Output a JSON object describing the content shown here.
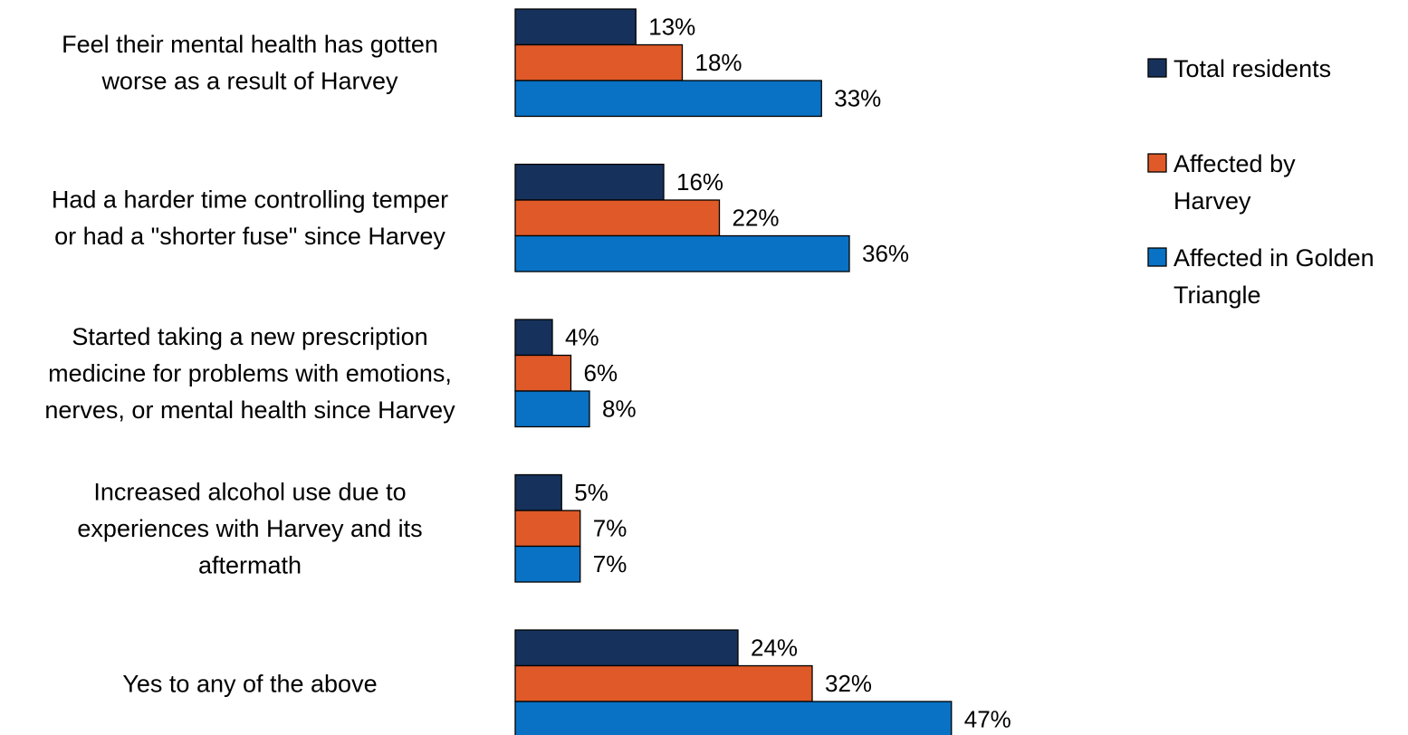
{
  "chart_data": {
    "type": "bar",
    "orientation": "horizontal",
    "categories": [
      [
        "Feel their mental health has gotten",
        "worse as a result of Harvey"
      ],
      [
        "Had a harder time controlling temper",
        "or had a \"shorter fuse\" since Harvey"
      ],
      [
        "Started taking a new prescription",
        "medicine for problems with emotions,",
        "nerves, or mental health since Harvey"
      ],
      [
        "Increased alcohol use due to",
        "experiences with Harvey and its",
        "aftermath"
      ],
      [
        "Yes to any of the above"
      ]
    ],
    "series": [
      {
        "name": "Total residents",
        "values": [
          13,
          16,
          4,
          5,
          24
        ],
        "labels": [
          "13%",
          "16%",
          "4%",
          "5%",
          "24%"
        ],
        "color": "#16325c"
      },
      {
        "name": "Affected by Harvey",
        "values": [
          18,
          22,
          6,
          7,
          32
        ],
        "labels": [
          "18%",
          "22%",
          "6%",
          "7%",
          "32%"
        ],
        "color": "#df5a28"
      },
      {
        "name": "Affected in Golden Triangle",
        "values": [
          33,
          36,
          8,
          7,
          47
        ],
        "labels": [
          "33%",
          "36%",
          "8%",
          "7%",
          "47%"
        ],
        "color": "#0972c5"
      }
    ],
    "legend": {
      "position": "right",
      "entries": [
        [
          "Total residents"
        ],
        [
          "Affected by",
          "Harvey"
        ],
        [
          "Affected in Golden",
          "Triangle"
        ]
      ]
    },
    "value_unit": "%",
    "xlim": [
      0,
      50
    ],
    "grid": false
  }
}
